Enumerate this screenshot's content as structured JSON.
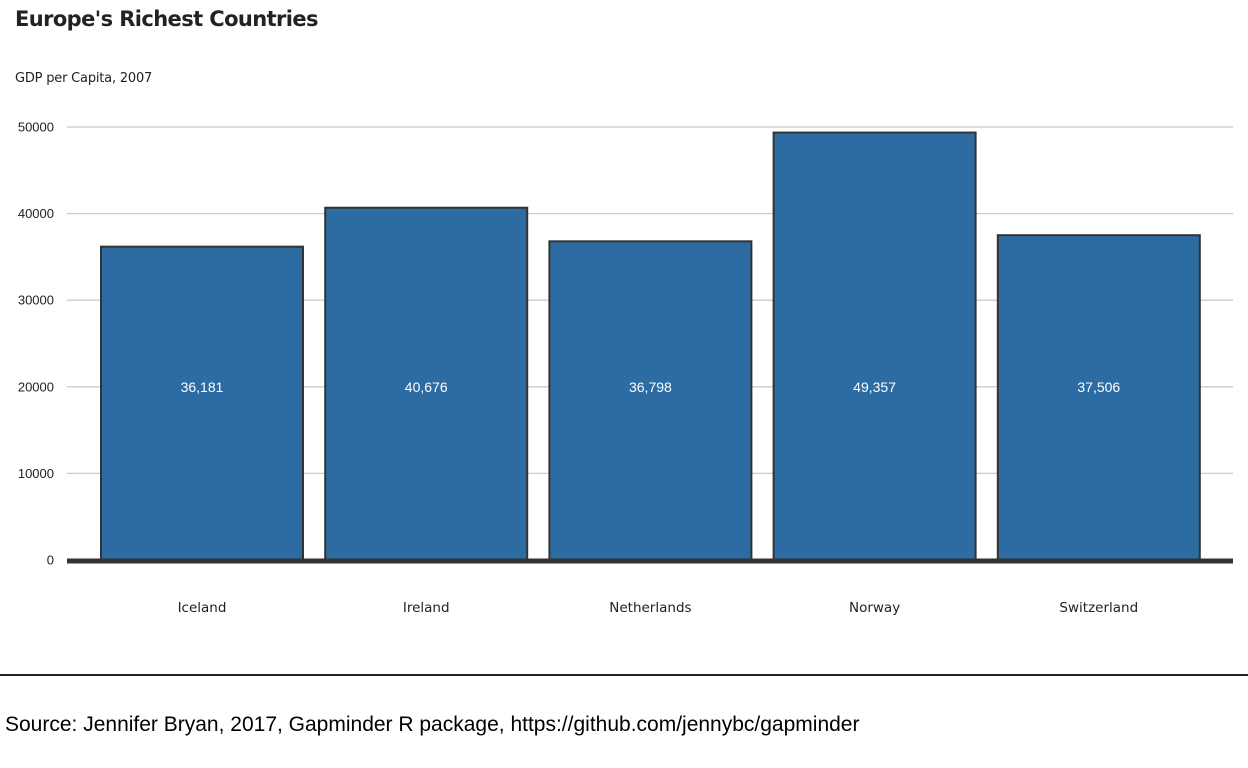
{
  "chart_data": {
    "type": "bar",
    "title": "Europe's Richest Countries",
    "subtitle": "GDP per Capita, 2007",
    "xlabel": "",
    "ylabel": "",
    "categories": [
      "Iceland",
      "Ireland",
      "Netherlands",
      "Norway",
      "Switzerland"
    ],
    "values": [
      36181,
      40676,
      36798,
      49357,
      37506
    ],
    "value_labels": [
      "36,181",
      "40,676",
      "36,798",
      "49,357",
      "37,506"
    ],
    "ylim": [
      0,
      50000
    ],
    "yticks": [
      0,
      10000,
      20000,
      30000,
      40000,
      50000
    ],
    "ytick_labels": [
      "0",
      "10000",
      "20000",
      "30000",
      "40000",
      "50000"
    ],
    "grid": true,
    "legend": "none",
    "bar_color": "#2d6ca2",
    "bar_edge_color": "#333333",
    "grid_color": "#cbcbcb",
    "baseline_color": "#333333"
  },
  "source": {
    "text": "Source: Jennifer Bryan, 2017, Gapminder R package, https://github.com/jennybc/gapminder"
  }
}
